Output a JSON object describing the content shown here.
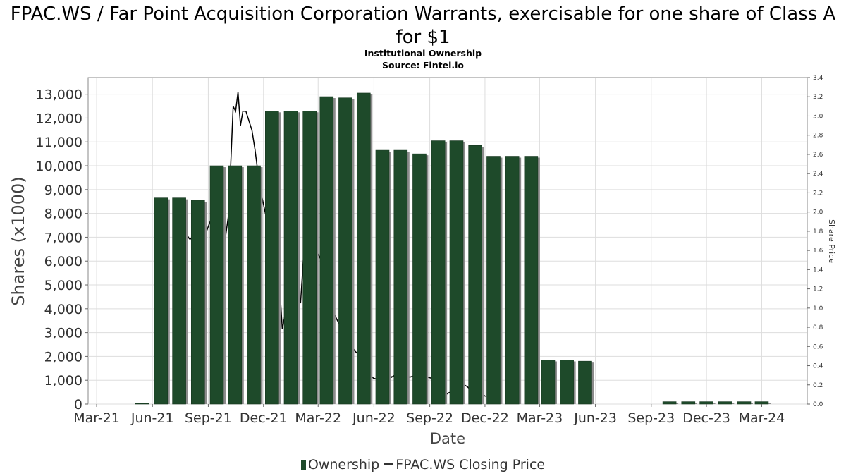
{
  "title": "FPAC.WS / Far Point Acquisition Corporation Warrants, exercisable for one share of Class A for $1",
  "subtitle": "Institutional Ownership",
  "source": "Source: Fintel.io",
  "colors": {
    "bar": "#1e4a2a",
    "bar_shadow": "#8c8c8c",
    "line": "#000000",
    "grid": "#dddddd"
  },
  "chart_data": {
    "type": "bar",
    "xlabel": "Date",
    "ylabel": "Shares (x1000)",
    "y2label": "Share Price",
    "x_ticks": [
      "Mar-21",
      "Jun-21",
      "Sep-21",
      "Dec-21",
      "Mar-22",
      "Jun-22",
      "Sep-22",
      "Dec-22",
      "Mar-23",
      "Jun-23",
      "Sep-23",
      "Dec-23",
      "Mar-24"
    ],
    "y_ticks": [
      "0",
      "1,000",
      "2,000",
      "3,000",
      "4,000",
      "5,000",
      "6,000",
      "7,000",
      "8,000",
      "9,000",
      "10,000",
      "11,000",
      "12,000",
      "13,000"
    ],
    "y2_ticks": [
      "0.0",
      "0.2",
      "0.4",
      "0.6",
      "0.8",
      "1.0",
      "1.2",
      "1.4",
      "1.6",
      "1.8",
      "2.0",
      "2.2",
      "2.4",
      "2.6",
      "2.8",
      "3.0",
      "3.2",
      "3.4"
    ],
    "ylim": [
      0,
      13700
    ],
    "y2lim": [
      0,
      3.4
    ],
    "grid": true,
    "legend_position": "bottom",
    "series": [
      {
        "name": "Ownership",
        "type": "bar",
        "x": [
          "2021-05-15",
          "2021-06-15",
          "2021-07-15",
          "2021-08-15",
          "2021-09-15",
          "2021-10-15",
          "2021-11-15",
          "2021-12-15",
          "2022-01-15",
          "2022-02-15",
          "2022-03-15",
          "2022-04-15",
          "2022-05-15",
          "2022-06-15",
          "2022-07-15",
          "2022-08-15",
          "2022-09-15",
          "2022-10-15",
          "2022-11-15",
          "2022-12-15",
          "2023-01-15",
          "2023-02-15",
          "2023-03-15",
          "2023-04-15",
          "2023-05-15",
          "2023-10-01",
          "2023-11-01",
          "2023-12-01",
          "2024-01-01",
          "2024-02-01",
          "2024-03-01"
        ],
        "values": [
          30,
          8650,
          8650,
          8550,
          10000,
          10000,
          10000,
          12300,
          12300,
          12300,
          12900,
          12850,
          13050,
          10650,
          10650,
          10500,
          11050,
          11050,
          10850,
          10400,
          10400,
          10400,
          1850,
          1850,
          1800,
          100,
          100,
          100,
          100,
          100,
          100
        ]
      },
      {
        "name": "FPAC.WS Closing Price",
        "type": "line",
        "x": [
          "2021-07-15",
          "2021-07-20",
          "2021-07-26",
          "2021-08-01",
          "2021-08-08",
          "2021-08-15",
          "2021-08-22",
          "2021-08-28",
          "2021-09-04",
          "2021-09-10",
          "2021-09-16",
          "2021-09-22",
          "2021-09-28",
          "2021-10-04",
          "2021-10-08",
          "2021-10-12",
          "2021-10-16",
          "2021-10-20",
          "2021-10-24",
          "2021-10-28",
          "2021-11-02",
          "2021-11-07",
          "2021-11-12",
          "2021-11-17",
          "2021-11-22",
          "2021-11-27",
          "2021-12-02",
          "2021-12-07",
          "2021-12-12",
          "2021-12-17",
          "2021-12-22",
          "2021-12-27",
          "2022-01-01",
          "2022-01-06",
          "2022-01-11",
          "2022-01-16",
          "2022-01-21",
          "2022-01-26",
          "2022-01-31",
          "2022-02-05",
          "2022-02-10",
          "2022-02-15",
          "2022-02-20",
          "2022-02-25",
          "2022-03-02",
          "2022-03-07",
          "2022-03-12",
          "2022-03-17",
          "2022-03-22",
          "2022-03-27",
          "2022-04-01",
          "2022-04-06",
          "2022-04-11",
          "2022-04-16",
          "2022-04-21",
          "2022-04-26",
          "2022-05-01",
          "2022-05-06",
          "2022-05-11",
          "2022-05-16",
          "2022-05-21",
          "2022-05-26",
          "2022-05-31",
          "2022-06-05",
          "2022-06-10",
          "2022-06-15",
          "2022-06-20",
          "2022-06-25",
          "2022-06-30",
          "2022-07-05",
          "2022-07-10",
          "2022-07-15",
          "2022-07-20",
          "2022-07-25",
          "2022-07-30",
          "2022-08-04",
          "2022-08-09",
          "2022-08-14",
          "2022-08-19",
          "2022-08-24",
          "2022-08-29",
          "2022-09-03",
          "2022-09-08",
          "2022-09-13",
          "2022-09-18",
          "2022-09-23",
          "2022-09-28",
          "2022-10-03",
          "2022-10-08",
          "2022-10-13",
          "2022-10-18",
          "2022-10-23",
          "2022-10-28",
          "2022-11-02",
          "2022-11-07",
          "2022-11-12",
          "2022-11-17",
          "2022-11-22",
          "2022-11-27",
          "2022-12-02"
        ],
        "values": [
          1.98,
          1.85,
          1.78,
          1.72,
          1.72,
          1.74,
          1.76,
          1.78,
          1.9,
          1.82,
          1.78,
          1.72,
          1.68,
          1.95,
          2.5,
          3.1,
          3.05,
          3.25,
          2.9,
          3.05,
          3.05,
          2.95,
          2.85,
          2.65,
          2.4,
          2.2,
          2.05,
          1.9,
          1.95,
          1.7,
          1.6,
          1.3,
          0.78,
          0.95,
          1.05,
          1.2,
          1.05,
          1.15,
          1.05,
          1.55,
          1.45,
          1.6,
          1.45,
          1.6,
          1.55,
          1.48,
          1.25,
          1.08,
          1.0,
          0.95,
          0.88,
          0.82,
          0.7,
          0.65,
          0.62,
          0.6,
          0.55,
          0.52,
          0.48,
          0.42,
          0.36,
          0.3,
          0.27,
          0.26,
          0.26,
          0.3,
          0.32,
          0.33,
          0.28,
          0.3,
          0.32,
          0.34,
          0.32,
          0.3,
          0.28,
          0.29,
          0.3,
          0.28,
          0.3,
          0.32,
          0.28,
          0.27,
          0.25,
          0.22,
          0.15,
          0.12,
          0.1,
          0.12,
          0.13,
          0.16,
          0.18,
          0.2,
          0.2,
          0.18,
          0.15,
          0.14,
          0.12,
          0.12,
          0.1,
          0.08
        ]
      }
    ]
  }
}
